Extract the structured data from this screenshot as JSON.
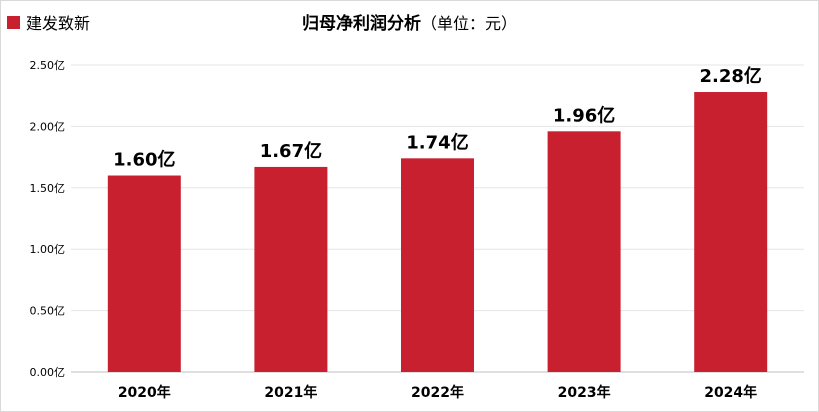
{
  "chart_data": {
    "type": "bar",
    "title": "归母净利润分析",
    "subtitle": "（单位：元）",
    "categories": [
      "2020年",
      "2021年",
      "2022年",
      "2023年",
      "2024年"
    ],
    "series": [
      {
        "name": "建发致新",
        "values": [
          1.6,
          1.67,
          1.74,
          1.96,
          2.28
        ]
      }
    ],
    "data_labels": [
      "1.60亿",
      "1.67亿",
      "1.74亿",
      "1.96亿",
      "2.28亿"
    ],
    "y_ticks": [
      0,
      0.5,
      1.0,
      1.5,
      2.0,
      2.5
    ],
    "y_tick_labels": [
      "0.00亿",
      "0.50亿",
      "1.00亿",
      "1.50亿",
      "2.00亿",
      "2.50亿"
    ],
    "ylim": [
      0,
      2.5
    ],
    "grid": true,
    "legend_position": "top-left",
    "bar_color": "#c8202f",
    "grid_color": "#e6e6e6"
  }
}
